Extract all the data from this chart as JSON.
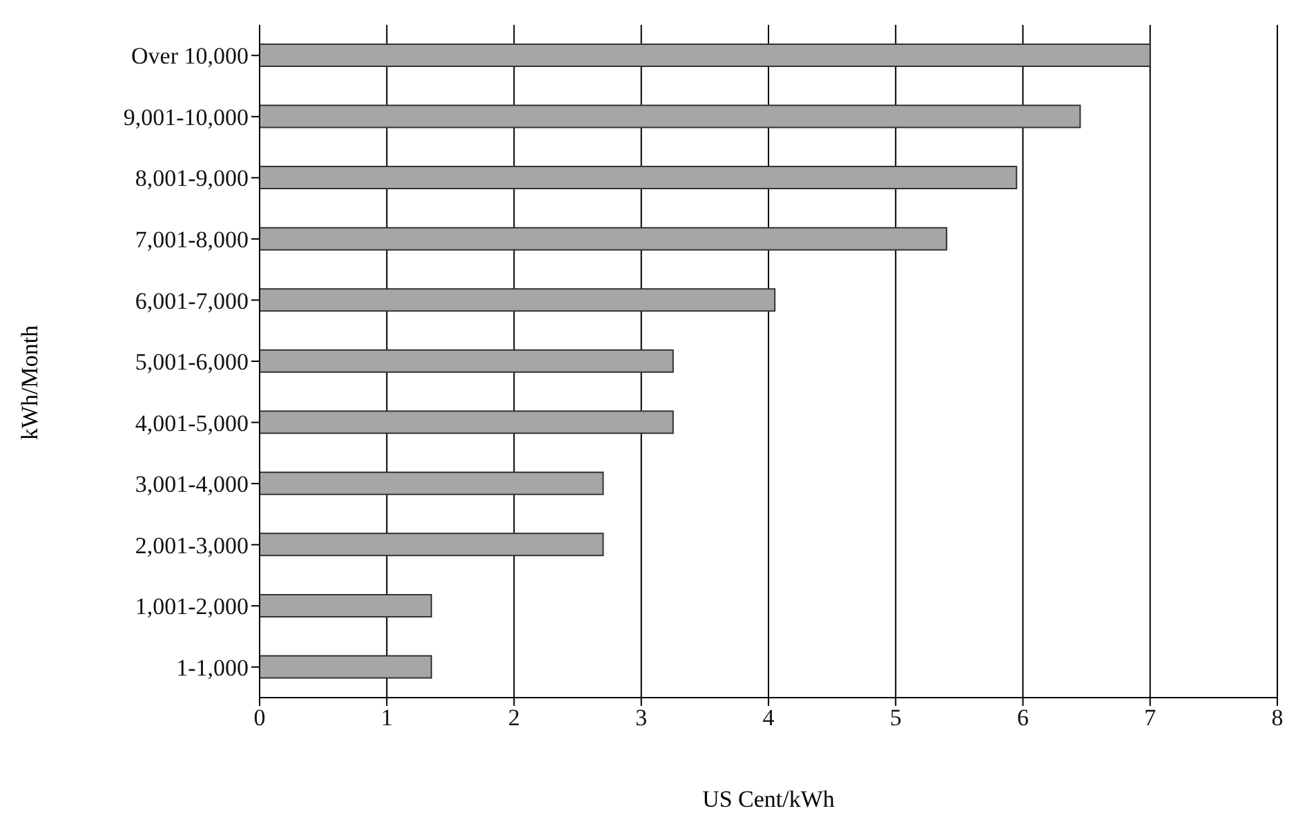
{
  "chart_data": {
    "type": "bar",
    "orientation": "horizontal",
    "xlabel": "US Cent/kWh",
    "ylabel": "kWh/Month",
    "categories": [
      "Over 10,000",
      "9,001-10,000",
      "8,001-9,000",
      "7,001-8,000",
      "6,001-7,000",
      "5,001-6,000",
      "4,001-5,000",
      "3,001-4,000",
      "2,001-3,000",
      "1,001-2,000",
      "1-1,000"
    ],
    "values": [
      7.0,
      6.45,
      5.95,
      5.4,
      4.05,
      3.25,
      3.25,
      2.7,
      2.7,
      1.35,
      1.35
    ],
    "color": "#a6a6a6",
    "xlim": [
      0,
      8
    ],
    "xticks": [
      0,
      1,
      2,
      3,
      4,
      5,
      6,
      7,
      8
    ],
    "grid": "x"
  }
}
